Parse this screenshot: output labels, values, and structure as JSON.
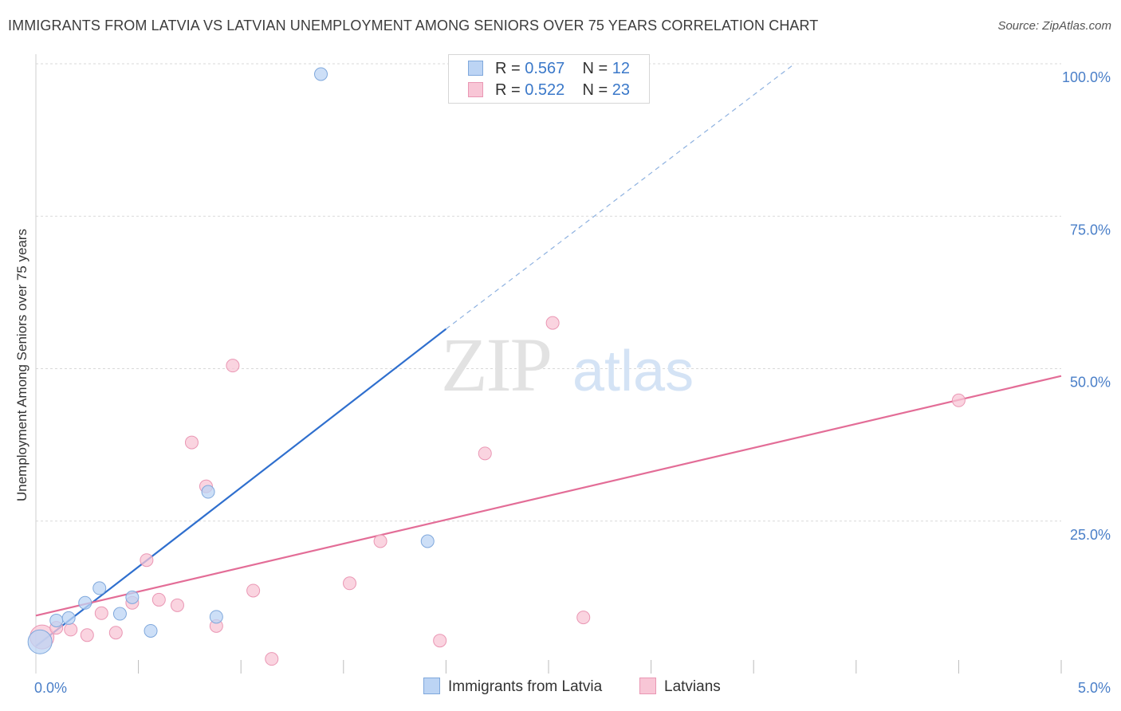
{
  "title": "IMMIGRANTS FROM LATVIA VS LATVIAN UNEMPLOYMENT AMONG SENIORS OVER 75 YEARS CORRELATION CHART",
  "source": "Source: ZipAtlas.com",
  "watermark": {
    "zip": "ZIP",
    "atlas": "atlas"
  },
  "colors": {
    "blue_fill": "#bcd4f4",
    "blue_stroke": "#7fa8dc",
    "blue_line": "#2f6fce",
    "pink_fill": "#f8c6d6",
    "pink_stroke": "#ea97b4",
    "pink_line": "#e36d97",
    "tick_label": "#4a7fc8",
    "grid": "#d9d9d9"
  },
  "legend": {
    "rows": [
      {
        "r_label": "R =",
        "r_value": "0.567",
        "n_label": "N =",
        "n_value": "12"
      },
      {
        "r_label": "R =",
        "r_value": "0.522",
        "n_label": "N =",
        "n_value": "23"
      }
    ]
  },
  "chart_data": {
    "type": "scatter",
    "title": "IMMIGRANTS FROM LATVIA VS LATVIAN UNEMPLOYMENT AMONG SENIORS OVER 75 YEARS CORRELATION CHART",
    "xlabel": "",
    "ylabel": "Unemployment Among Seniors over 75 years",
    "xlim": [
      0,
      5
    ],
    "ylim": [
      0,
      100
    ],
    "x_tick_labels": [
      "0.0%",
      "5.0%"
    ],
    "y_tick_labels": [
      "25.0%",
      "50.0%",
      "75.0%",
      "100.0%"
    ],
    "y_ticks": [
      25,
      50,
      75,
      100
    ],
    "grid": true,
    "legend_position": "top-center",
    "series": [
      {
        "name": "Immigrants from Latvia",
        "color": "#bcd4f4",
        "points": [
          {
            "x": 0.02,
            "y": 5.2,
            "size": "large"
          },
          {
            "x": 0.1,
            "y": 8.7
          },
          {
            "x": 0.16,
            "y": 9.1
          },
          {
            "x": 0.24,
            "y": 11.6
          },
          {
            "x": 0.31,
            "y": 14.0
          },
          {
            "x": 0.41,
            "y": 9.8
          },
          {
            "x": 0.47,
            "y": 12.5
          },
          {
            "x": 0.56,
            "y": 7.0
          },
          {
            "x": 0.84,
            "y": 29.8
          },
          {
            "x": 0.88,
            "y": 9.3
          },
          {
            "x": 1.39,
            "y": 98.3
          },
          {
            "x": 1.91,
            "y": 21.7
          }
        ],
        "trend": {
          "x0": 0.0,
          "y0": 4.5,
          "x1": 2.0,
          "y1": 56.5,
          "dash_to_x": 3.7,
          "dash_to_y": 100
        }
      },
      {
        "name": "Latvians",
        "color": "#f8c6d6",
        "points": [
          {
            "x": 0.03,
            "y": 6.0,
            "size": "large"
          },
          {
            "x": 0.1,
            "y": 7.5
          },
          {
            "x": 0.17,
            "y": 7.2
          },
          {
            "x": 0.25,
            "y": 6.3
          },
          {
            "x": 0.32,
            "y": 9.9
          },
          {
            "x": 0.39,
            "y": 6.7
          },
          {
            "x": 0.47,
            "y": 11.6
          },
          {
            "x": 0.54,
            "y": 18.6
          },
          {
            "x": 0.6,
            "y": 12.1
          },
          {
            "x": 0.69,
            "y": 11.2
          },
          {
            "x": 0.76,
            "y": 37.9
          },
          {
            "x": 0.83,
            "y": 30.7
          },
          {
            "x": 0.88,
            "y": 7.8
          },
          {
            "x": 0.96,
            "y": 50.5
          },
          {
            "x": 1.06,
            "y": 13.6
          },
          {
            "x": 1.15,
            "y": 2.4
          },
          {
            "x": 1.53,
            "y": 14.8
          },
          {
            "x": 1.68,
            "y": 21.7
          },
          {
            "x": 1.97,
            "y": 5.4
          },
          {
            "x": 2.19,
            "y": 36.1
          },
          {
            "x": 2.52,
            "y": 57.5
          },
          {
            "x": 2.67,
            "y": 9.2
          },
          {
            "x": 4.5,
            "y": 44.8
          }
        ],
        "trend": {
          "x0": 0.0,
          "y0": 9.5,
          "x1": 5.0,
          "y1": 48.8
        }
      }
    ]
  }
}
